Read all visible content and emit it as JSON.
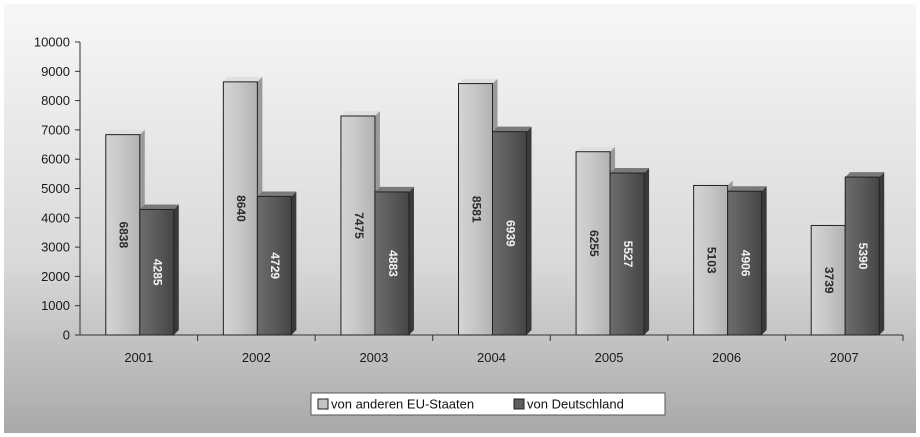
{
  "chart_data": {
    "type": "bar",
    "categories": [
      "2001",
      "2002",
      "2003",
      "2004",
      "2005",
      "2006",
      "2007"
    ],
    "series": [
      {
        "name": "von anderen EU-Staaten",
        "values": [
          6838,
          8640,
          7475,
          8581,
          6255,
          5103,
          3739
        ],
        "labels": [
          "6838",
          "8640",
          "7475",
          "8581",
          "6255",
          "5103",
          "3739"
        ],
        "color": "#c4c4c4"
      },
      {
        "name": "von Deutschland",
        "values": [
          4285,
          4729,
          4883,
          6939,
          5527,
          4906,
          5390
        ],
        "labels": [
          "4285",
          "4729",
          "4883",
          "6939",
          "5527",
          "4906",
          "5390"
        ],
        "color": "#5e5e5e"
      }
    ],
    "ylim": [
      0,
      10000
    ],
    "yticks": [
      0,
      1000,
      2000,
      3000,
      4000,
      5000,
      6000,
      7000,
      8000,
      9000,
      10000
    ],
    "ytick_labels": [
      "0",
      "1000",
      "2000",
      "3000",
      "4000",
      "5000",
      "6000",
      "7000",
      "8000",
      "9000",
      "10000"
    ],
    "grid": false,
    "legend_position": "bottom-center",
    "title": "",
    "xlabel": "",
    "ylabel": ""
  }
}
